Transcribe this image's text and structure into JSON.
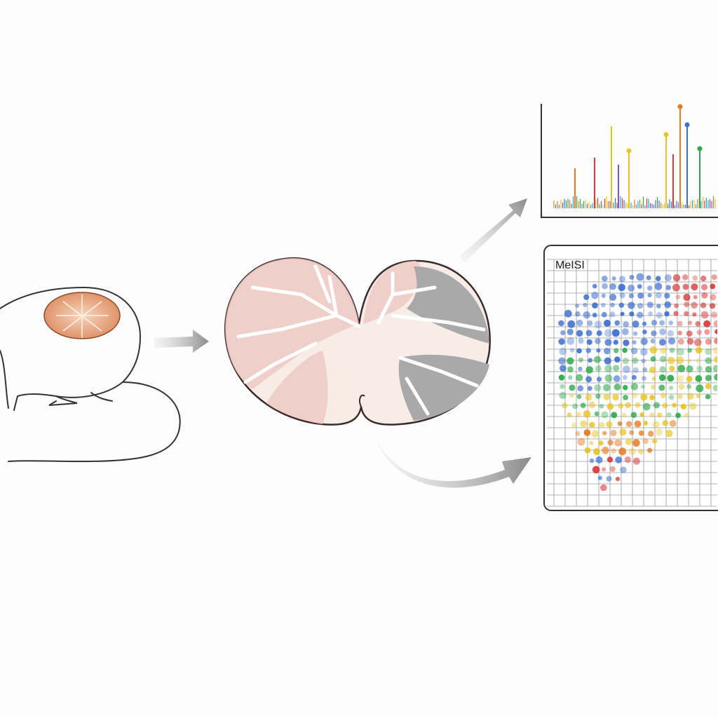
{
  "imaging_panel": {
    "label": "MeISI"
  }
}
